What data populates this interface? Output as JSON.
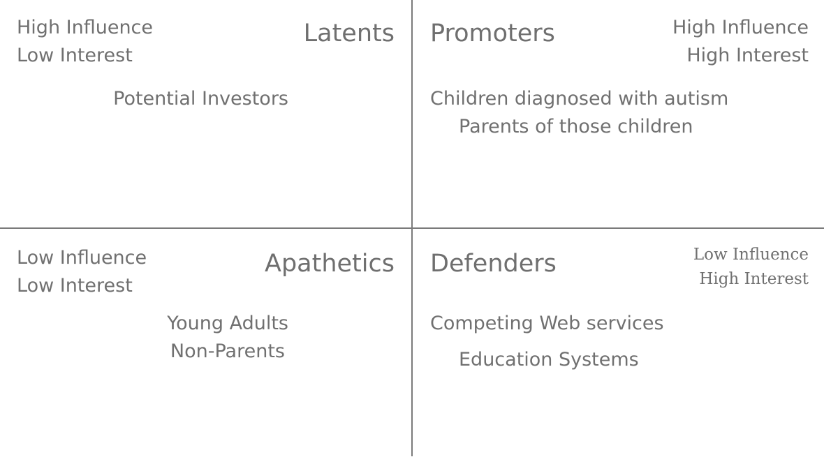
{
  "quadrants": {
    "latents": {
      "title": "Latents",
      "desc_line1": "High Influence",
      "desc_line2": "Low Interest",
      "items": [
        "Potential Investors"
      ]
    },
    "promoters": {
      "title": "Promoters",
      "desc_line1": "High Influence",
      "desc_line2": "High Interest",
      "items": [
        "Children diagnosed with autism",
        "Parents of those children"
      ]
    },
    "apathetics": {
      "title": "Apathetics",
      "desc_line1": "Low Influence",
      "desc_line2": "Low Interest",
      "items": [
        "Young Adults",
        "Non-Parents"
      ]
    },
    "defenders": {
      "title": "Defenders",
      "desc_line1": "Low Influence",
      "desc_line2": "High Interest",
      "items": [
        "Competing Web services",
        "Education Systems"
      ]
    }
  },
  "colors": {
    "text": "#707070",
    "axis": "#7a7a7a",
    "background": "#ffffff"
  }
}
